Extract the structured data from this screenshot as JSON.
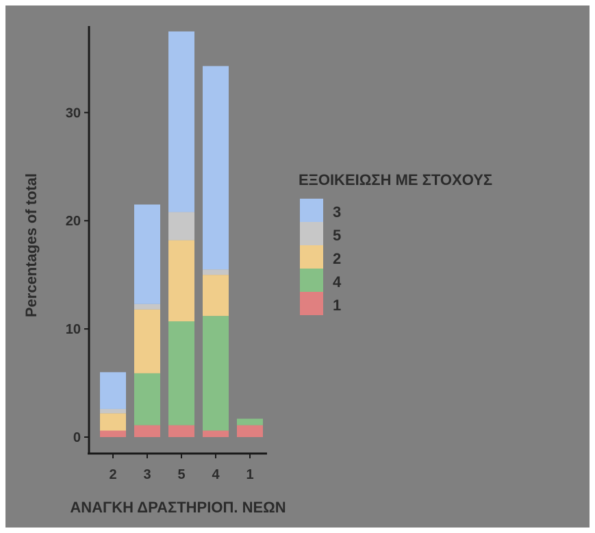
{
  "chart_data": {
    "type": "bar",
    "stacked": true,
    "title": "",
    "xlabel": "ΑΝΑΓΚΗ ΔΡΑΣΤΗΡΙΟΠ. ΝΕΩΝ",
    "ylabel": "Percentages of total",
    "ylim": [
      0,
      38
    ],
    "yticks": [
      0,
      10,
      20,
      30
    ],
    "categories": [
      "2",
      "3",
      "5",
      "4",
      "1"
    ],
    "legend": {
      "title": "ΕΞΟΙΚΕΙΩΣΗ ΜΕ ΣΤΟΧΟΥΣ",
      "position": "right",
      "order": [
        "3",
        "5",
        "2",
        "4",
        "1"
      ]
    },
    "series": [
      {
        "name": "1",
        "color": "#e08080",
        "values": [
          0.6,
          1.1,
          1.1,
          0.6,
          1.1
        ]
      },
      {
        "name": "4",
        "color": "#86c086",
        "values": [
          0,
          4.8,
          9.6,
          10.6,
          0.6
        ]
      },
      {
        "name": "2",
        "color": "#f0cd8a",
        "values": [
          1.6,
          5.9,
          7.5,
          3.8,
          0
        ]
      },
      {
        "name": "5",
        "color": "#c7c7c7",
        "values": [
          0.4,
          0.5,
          2.6,
          0.5,
          0
        ]
      },
      {
        "name": "3",
        "color": "#a6c4f0",
        "values": [
          3.4,
          9.2,
          16.7,
          18.8,
          0
        ]
      }
    ]
  }
}
